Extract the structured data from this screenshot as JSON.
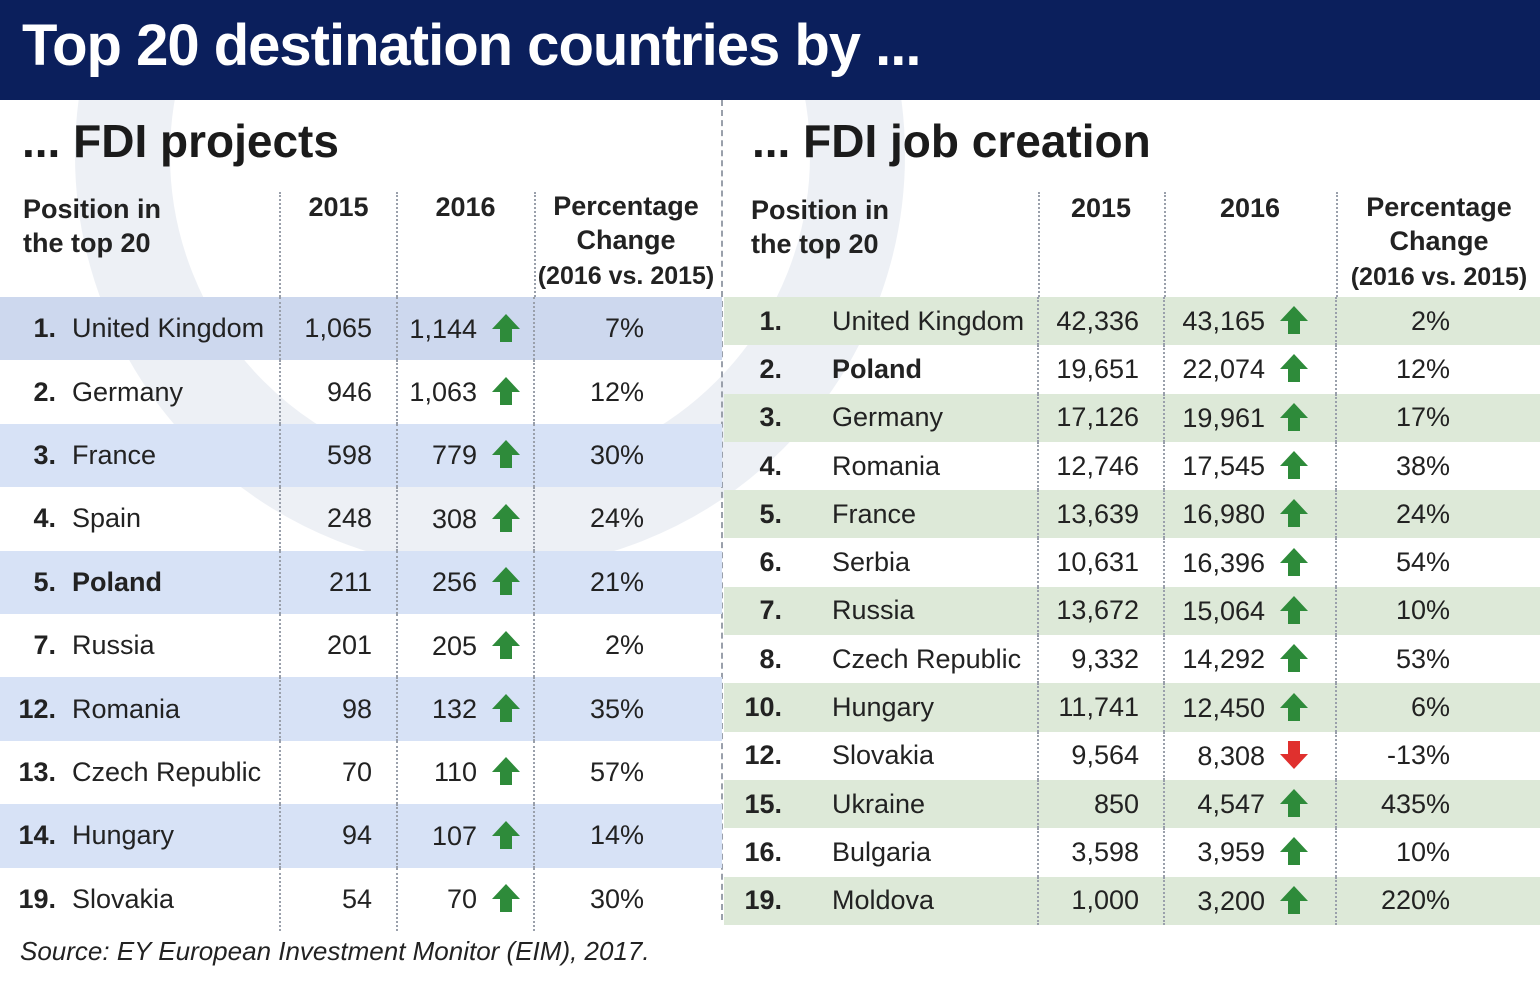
{
  "title": "Top 20 destination countries by ...",
  "source": "Source: EY European Investment Monitor (EIM), 2017.",
  "colors": {
    "header_bg": "#0b1f5c",
    "left_shade": "#d7e2f6",
    "right_shade": "#dde9d8",
    "up_arrow": "#2e8b3a",
    "down_arrow": "#e0302e"
  },
  "chart_data": [
    {
      "type": "table",
      "title": "... FDI projects",
      "columns": [
        "Position in the top 20",
        "2015",
        "2016",
        "Percentage Change (2016 vs. 2015)"
      ],
      "rows": [
        {
          "position": "1.",
          "country": "United Kingdom",
          "y2015": "1,065",
          "y2016": "1,144",
          "trend": "up",
          "change": "7%"
        },
        {
          "position": "2.",
          "country": "Germany",
          "y2015": "946",
          "y2016": "1,063",
          "trend": "up",
          "change": "12%"
        },
        {
          "position": "3.",
          "country": "France",
          "y2015": "598",
          "y2016": "779",
          "trend": "up",
          "change": "30%"
        },
        {
          "position": "4.",
          "country": "Spain",
          "y2015": "248",
          "y2016": "308",
          "trend": "up",
          "change": "24%"
        },
        {
          "position": "5.",
          "country": "Poland",
          "y2015": "211",
          "y2016": "256",
          "trend": "up",
          "change": "21%",
          "highlight": true
        },
        {
          "position": "7.",
          "country": "Russia",
          "y2015": "201",
          "y2016": "205",
          "trend": "up",
          "change": "2%"
        },
        {
          "position": "12.",
          "country": "Romania",
          "y2015": "98",
          "y2016": "132",
          "trend": "up",
          "change": "35%"
        },
        {
          "position": "13.",
          "country": "Czech Republic",
          "y2015": "70",
          "y2016": "110",
          "trend": "up",
          "change": "57%"
        },
        {
          "position": "14.",
          "country": "Hungary",
          "y2015": "94",
          "y2016": "107",
          "trend": "up",
          "change": "14%"
        },
        {
          "position": "19.",
          "country": "Slovakia",
          "y2015": "54",
          "y2016": "70",
          "trend": "up",
          "change": "30%"
        }
      ]
    },
    {
      "type": "table",
      "title": "... FDI job creation",
      "columns": [
        "Position in the top 20",
        "2015",
        "2016",
        "Percentage Change (2016 vs. 2015)"
      ],
      "rows": [
        {
          "position": "1.",
          "country": "United Kingdom",
          "y2015": "42,336",
          "y2016": "43,165",
          "trend": "up",
          "change": "2%"
        },
        {
          "position": "2.",
          "country": "Poland",
          "y2015": "19,651",
          "y2016": "22,074",
          "trend": "up",
          "change": "12%",
          "highlight": true
        },
        {
          "position": "3.",
          "country": "Germany",
          "y2015": "17,126",
          "y2016": "19,961",
          "trend": "up",
          "change": "17%"
        },
        {
          "position": "4.",
          "country": "Romania",
          "y2015": "12,746",
          "y2016": "17,545",
          "trend": "up",
          "change": "38%"
        },
        {
          "position": "5.",
          "country": "France",
          "y2015": "13,639",
          "y2016": "16,980",
          "trend": "up",
          "change": "24%"
        },
        {
          "position": "6.",
          "country": "Serbia",
          "y2015": "10,631",
          "y2016": "16,396",
          "trend": "up",
          "change": "54%"
        },
        {
          "position": "7.",
          "country": "Russia",
          "y2015": "13,672",
          "y2016": "15,064",
          "trend": "up",
          "change": "10%"
        },
        {
          "position": "8.",
          "country": "Czech Republic",
          "y2015": "9,332",
          "y2016": "14,292",
          "trend": "up",
          "change": "53%"
        },
        {
          "position": "10.",
          "country": "Hungary",
          "y2015": "11,741",
          "y2016": "12,450",
          "trend": "up",
          "change": "6%"
        },
        {
          "position": "12.",
          "country": "Slovakia",
          "y2015": "9,564",
          "y2016": "8,308",
          "trend": "down",
          "change": "-13%"
        },
        {
          "position": "15.",
          "country": "Ukraine",
          "y2015": "850",
          "y2016": "4,547",
          "trend": "up",
          "change": "435%"
        },
        {
          "position": "16.",
          "country": "Bulgaria",
          "y2015": "3,598",
          "y2016": "3,959",
          "trend": "up",
          "change": "10%"
        },
        {
          "position": "19.",
          "country": "Moldova",
          "y2015": "1,000",
          "y2016": "3,200",
          "trend": "up",
          "change": "220%"
        }
      ]
    }
  ],
  "headers": {
    "position_line1": "Position in",
    "position_line2": "the top 20",
    "pct_line1": "Percentage",
    "pct_line2": "Change",
    "pct_line3": "(2016 vs. 2015)"
  }
}
